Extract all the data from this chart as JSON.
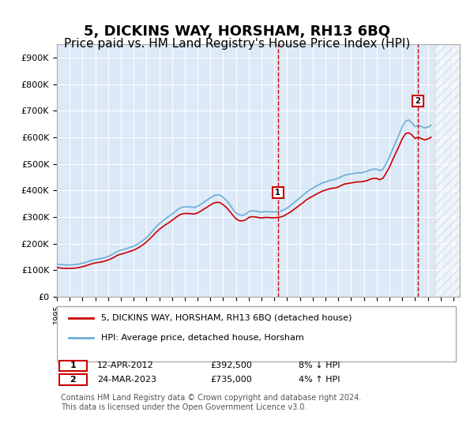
{
  "title": "5, DICKINS WAY, HORSHAM, RH13 6BQ",
  "subtitle": "Price paid vs. HM Land Registry's House Price Index (HPI)",
  "title_fontsize": 13,
  "subtitle_fontsize": 11,
  "ylabel_ticks": [
    "£0",
    "£100K",
    "£200K",
    "£300K",
    "£400K",
    "£500K",
    "£600K",
    "£700K",
    "£800K",
    "£900K"
  ],
  "ytick_values": [
    0,
    100000,
    200000,
    300000,
    400000,
    500000,
    600000,
    700000,
    800000,
    900000
  ],
  "ylim": [
    0,
    950000
  ],
  "xlim_start": 1995.0,
  "xlim_end": 2026.5,
  "background_color": "#dce9f7",
  "plot_bg_color": "#dce9f7",
  "grid_color": "#ffffff",
  "hpi_color": "#6baed6",
  "price_color": "#cc0000",
  "sale1_year": 2012.28,
  "sale1_price": 392500,
  "sale2_year": 2023.23,
  "sale2_price": 735000,
  "legend_label_price": "5, DICKINS WAY, HORSHAM, RH13 6BQ (detached house)",
  "legend_label_hpi": "HPI: Average price, detached house, Horsham",
  "table_row1": [
    "1",
    "12-APR-2012",
    "£392,500",
    "8% ↓ HPI"
  ],
  "table_row2": [
    "2",
    "24-MAR-2023",
    "£735,000",
    "4% ↑ HPI"
  ],
  "footer": "Contains HM Land Registry data © Crown copyright and database right 2024.\nThis data is licensed under the Open Government Licence v3.0.",
  "hpi_data": {
    "years": [
      1995.0,
      1995.25,
      1995.5,
      1995.75,
      1996.0,
      1996.25,
      1996.5,
      1996.75,
      1997.0,
      1997.25,
      1997.5,
      1997.75,
      1998.0,
      1998.25,
      1998.5,
      1998.75,
      1999.0,
      1999.25,
      1999.5,
      1999.75,
      2000.0,
      2000.25,
      2000.5,
      2000.75,
      2001.0,
      2001.25,
      2001.5,
      2001.75,
      2002.0,
      2002.25,
      2002.5,
      2002.75,
      2003.0,
      2003.25,
      2003.5,
      2003.75,
      2004.0,
      2004.25,
      2004.5,
      2004.75,
      2005.0,
      2005.25,
      2005.5,
      2005.75,
      2006.0,
      2006.25,
      2006.5,
      2006.75,
      2007.0,
      2007.25,
      2007.5,
      2007.75,
      2008.0,
      2008.25,
      2008.5,
      2008.75,
      2009.0,
      2009.25,
      2009.5,
      2009.75,
      2010.0,
      2010.25,
      2010.5,
      2010.75,
      2011.0,
      2011.25,
      2011.5,
      2011.75,
      2012.0,
      2012.25,
      2012.5,
      2012.75,
      2013.0,
      2013.25,
      2013.5,
      2013.75,
      2014.0,
      2014.25,
      2014.5,
      2014.75,
      2015.0,
      2015.25,
      2015.5,
      2015.75,
      2016.0,
      2016.25,
      2016.5,
      2016.75,
      2017.0,
      2017.25,
      2017.5,
      2017.75,
      2018.0,
      2018.25,
      2018.5,
      2018.75,
      2019.0,
      2019.25,
      2019.5,
      2019.75,
      2020.0,
      2020.25,
      2020.5,
      2020.75,
      2021.0,
      2021.25,
      2021.5,
      2021.75,
      2022.0,
      2022.25,
      2022.5,
      2022.75,
      2023.0,
      2023.25,
      2023.5,
      2023.75,
      2024.0,
      2024.25
    ],
    "values": [
      123000,
      121000,
      120000,
      119000,
      119500,
      120000,
      121000,
      123000,
      126000,
      129000,
      133000,
      137000,
      140000,
      142000,
      144000,
      147000,
      151000,
      157000,
      164000,
      171000,
      175000,
      178000,
      182000,
      186000,
      190000,
      196000,
      204000,
      212000,
      222000,
      234000,
      248000,
      262000,
      274000,
      284000,
      294000,
      302000,
      311000,
      320000,
      330000,
      336000,
      338000,
      338000,
      337000,
      336000,
      340000,
      347000,
      356000,
      364000,
      372000,
      379000,
      383000,
      382000,
      374000,
      363000,
      347000,
      330000,
      315000,
      308000,
      306000,
      310000,
      320000,
      323000,
      322000,
      320000,
      318000,
      320000,
      320000,
      319000,
      319000,
      320000,
      322000,
      327000,
      334000,
      342000,
      352000,
      362000,
      372000,
      382000,
      393000,
      401000,
      408000,
      415000,
      422000,
      428000,
      432000,
      436000,
      440000,
      441000,
      446000,
      452000,
      457000,
      460000,
      462000,
      464000,
      466000,
      466000,
      468000,
      472000,
      477000,
      480000,
      480000,
      474000,
      480000,
      502000,
      525000,
      555000,
      583000,
      610000,
      640000,
      660000,
      665000,
      655000,
      640000,
      645000,
      640000,
      635000,
      638000,
      645000
    ]
  },
  "price_data": {
    "years": [
      1995.0,
      1995.25,
      1995.5,
      1995.75,
      1996.0,
      1996.25,
      1996.5,
      1996.75,
      1997.0,
      1997.25,
      1997.5,
      1997.75,
      1998.0,
      1998.25,
      1998.5,
      1998.75,
      1999.0,
      1999.25,
      1999.5,
      1999.75,
      2000.0,
      2000.25,
      2000.5,
      2000.75,
      2001.0,
      2001.25,
      2001.5,
      2001.75,
      2002.0,
      2002.25,
      2002.5,
      2002.75,
      2003.0,
      2003.25,
      2003.5,
      2003.75,
      2004.0,
      2004.25,
      2004.5,
      2004.75,
      2005.0,
      2005.25,
      2005.5,
      2005.75,
      2006.0,
      2006.25,
      2006.5,
      2006.75,
      2007.0,
      2007.25,
      2007.5,
      2007.75,
      2008.0,
      2008.25,
      2008.5,
      2008.75,
      2009.0,
      2009.25,
      2009.5,
      2009.75,
      2010.0,
      2010.25,
      2010.5,
      2010.75,
      2011.0,
      2011.25,
      2011.5,
      2011.75,
      2012.0,
      2012.25,
      2012.5,
      2012.75,
      2013.0,
      2013.25,
      2013.5,
      2013.75,
      2014.0,
      2014.25,
      2014.5,
      2014.75,
      2015.0,
      2015.25,
      2015.5,
      2015.75,
      2016.0,
      2016.25,
      2016.5,
      2016.75,
      2017.0,
      2017.25,
      2017.5,
      2017.75,
      2018.0,
      2018.25,
      2018.5,
      2018.75,
      2019.0,
      2019.25,
      2019.5,
      2019.75,
      2020.0,
      2020.25,
      2020.5,
      2020.75,
      2021.0,
      2021.25,
      2021.5,
      2021.75,
      2022.0,
      2022.25,
      2022.5,
      2022.75,
      2023.0,
      2023.25,
      2023.5,
      2023.75,
      2024.0,
      2024.25
    ],
    "values": [
      110000,
      108000,
      107000,
      106000,
      106500,
      107000,
      108000,
      110000,
      113000,
      116000,
      120000,
      124000,
      127000,
      129000,
      131000,
      134000,
      138000,
      143000,
      149000,
      156000,
      160000,
      163000,
      167000,
      171000,
      175000,
      181000,
      188000,
      196000,
      206000,
      217000,
      229000,
      242000,
      253000,
      262000,
      271000,
      278000,
      287000,
      296000,
      305000,
      311000,
      313000,
      313000,
      312000,
      311000,
      315000,
      322000,
      330000,
      337000,
      345000,
      352000,
      355000,
      354000,
      346000,
      336000,
      322000,
      307000,
      293000,
      286000,
      285000,
      289000,
      298000,
      301000,
      300000,
      298000,
      296000,
      298000,
      298000,
      297000,
      297000,
      298000,
      300000,
      304000,
      311000,
      318000,
      327000,
      336000,
      345000,
      354000,
      364000,
      372000,
      378000,
      385000,
      391000,
      397000,
      401000,
      405000,
      408000,
      409000,
      413000,
      419000,
      424000,
      426000,
      428000,
      430000,
      432000,
      432000,
      434000,
      437000,
      442000,
      445000,
      445000,
      440000,
      446000,
      466000,
      487000,
      515000,
      541000,
      566000,
      594000,
      613000,
      617000,
      609000,
      595000,
      600000,
      595000,
      590000,
      593000,
      600000
    ]
  }
}
